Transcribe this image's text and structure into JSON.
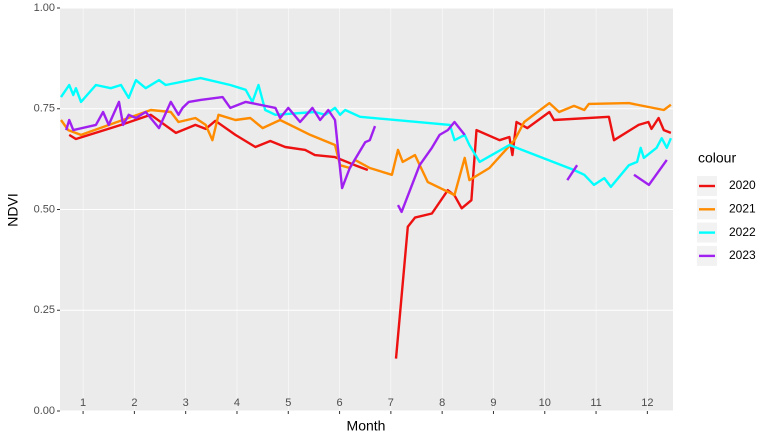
{
  "chart_data": {
    "type": "line",
    "x_label": "Month",
    "y_label": "NDVI",
    "legend_title": "colour",
    "xlim": [
      0.55,
      12.5
    ],
    "ylim": [
      0,
      1
    ],
    "xticks": [
      1,
      2,
      3,
      4,
      5,
      6,
      7,
      8,
      9,
      10,
      11,
      12
    ],
    "yticks": [
      {
        "value": 0,
        "label": "0.00"
      },
      {
        "value": 0.25,
        "label": "0.25"
      },
      {
        "value": 0.5,
        "label": "0.50"
      },
      {
        "value": 0.75,
        "label": "0.75"
      },
      {
        "value": 1,
        "label": "1.00"
      }
    ],
    "grid": true,
    "legend": "right",
    "series": [
      {
        "name": "2020",
        "color": "#ee1111",
        "x": [
          0.73,
          0.86,
          1.74,
          2.32,
          2.81,
          3.19,
          3.39,
          3.58,
          3.97,
          4.36,
          4.65,
          4.94,
          5.33,
          5.52,
          5.91,
          6.3,
          6.55,
          null,
          7.1,
          7.33,
          7.47,
          7.8,
          8.11,
          8.24,
          8.38,
          8.57,
          8.67,
          9.12,
          9.31,
          9.37,
          9.45,
          9.66,
          10.09,
          10.18,
          11.25,
          11.35,
          11.83,
          12.02,
          12.08,
          12.22,
          12.32,
          12.46
        ],
        "values": [
          0.685,
          0.675,
          0.71,
          0.735,
          0.69,
          0.71,
          0.7,
          0.72,
          0.685,
          0.655,
          0.67,
          0.655,
          0.648,
          0.635,
          0.63,
          0.61,
          0.598,
          null,
          0.13,
          0.457,
          0.48,
          0.49,
          0.548,
          0.535,
          0.503,
          0.523,
          0.697,
          0.672,
          0.68,
          0.635,
          0.717,
          0.702,
          0.742,
          0.722,
          0.73,
          0.672,
          0.71,
          0.717,
          0.7,
          0.727,
          0.697,
          0.69
        ]
      },
      {
        "name": "2021",
        "color": "#ff8c00",
        "x": [
          0.57,
          0.71,
          0.96,
          2.32,
          2.71,
          2.86,
          3.19,
          3.39,
          3.52,
          3.64,
          3.97,
          4.26,
          4.5,
          4.84,
          5.43,
          5.91,
          6.01,
          6.2,
          6.3,
          6.59,
          7.02,
          7.14,
          7.23,
          7.47,
          7.72,
          8.24,
          8.44,
          8.53,
          8.92,
          9.41,
          9.6,
          10.09,
          10.28,
          10.57,
          10.77,
          10.86,
          11.64,
          12.32,
          12.46
        ],
        "values": [
          0.722,
          0.697,
          0.685,
          0.747,
          0.742,
          0.717,
          0.727,
          0.71,
          0.672,
          0.735,
          0.722,
          0.727,
          0.702,
          0.722,
          0.685,
          0.66,
          0.61,
          0.603,
          0.623,
          0.603,
          0.586,
          0.648,
          0.618,
          0.635,
          0.568,
          0.536,
          0.628,
          0.573,
          0.603,
          0.672,
          0.717,
          0.764,
          0.742,
          0.757,
          0.747,
          0.762,
          0.764,
          0.747,
          0.76
        ]
      },
      {
        "name": "2022",
        "color": "#00ffff",
        "x": [
          0.57,
          0.73,
          0.81,
          0.86,
          0.96,
          1.25,
          1.54,
          1.74,
          1.89,
          2.03,
          2.22,
          2.48,
          2.61,
          3.29,
          3.87,
          4.17,
          4.3,
          4.42,
          4.55,
          4.75,
          5.52,
          5.72,
          5.91,
          6.01,
          6.11,
          6.4,
          8.15,
          8.24,
          8.44,
          8.53,
          8.73,
          9.31,
          10.57,
          10.77,
          10.96,
          11.16,
          11.29,
          11.64,
          11.8,
          11.87,
          11.93,
          12.18,
          12.28,
          12.38,
          12.46
        ],
        "values": [
          0.779,
          0.809,
          0.784,
          0.801,
          0.767,
          0.809,
          0.801,
          0.809,
          0.777,
          0.821,
          0.801,
          0.821,
          0.809,
          0.826,
          0.809,
          0.797,
          0.767,
          0.809,
          0.747,
          0.735,
          0.742,
          0.735,
          0.752,
          0.735,
          0.747,
          0.73,
          0.71,
          0.672,
          0.685,
          0.66,
          0.618,
          0.66,
          0.598,
          0.586,
          0.561,
          0.578,
          0.556,
          0.61,
          0.618,
          0.653,
          0.628,
          0.653,
          0.677,
          0.653,
          0.677
        ]
      },
      {
        "name": "2023",
        "color": "#a020f0",
        "x": [
          0.67,
          0.73,
          0.81,
          1.25,
          1.39,
          1.5,
          1.7,
          1.78,
          1.89,
          2.03,
          2.22,
          2.48,
          2.71,
          2.86,
          2.94,
          3.06,
          3.29,
          3.72,
          3.87,
          4.17,
          4.75,
          4.84,
          5.0,
          5.23,
          5.47,
          5.62,
          5.78,
          5.91,
          6.05,
          6.2,
          6.5,
          6.59,
          6.69,
          null,
          7.14,
          7.21,
          7.56,
          7.8,
          7.95,
          8.11,
          8.24,
          8.44,
          null,
          10.44,
          10.63,
          null,
          11.74,
          12.03,
          12.38
        ],
        "values": [
          0.697,
          0.722,
          0.697,
          0.71,
          0.742,
          0.71,
          0.767,
          0.71,
          0.735,
          0.727,
          0.742,
          0.702,
          0.767,
          0.735,
          0.752,
          0.767,
          0.772,
          0.779,
          0.752,
          0.767,
          0.752,
          0.727,
          0.752,
          0.717,
          0.752,
          0.722,
          0.747,
          0.722,
          0.553,
          0.603,
          0.667,
          0.672,
          0.707,
          null,
          0.511,
          0.494,
          0.61,
          0.653,
          0.685,
          0.697,
          0.717,
          0.685,
          null,
          0.573,
          0.61,
          null,
          0.586,
          0.561,
          0.623
        ]
      }
    ]
  }
}
